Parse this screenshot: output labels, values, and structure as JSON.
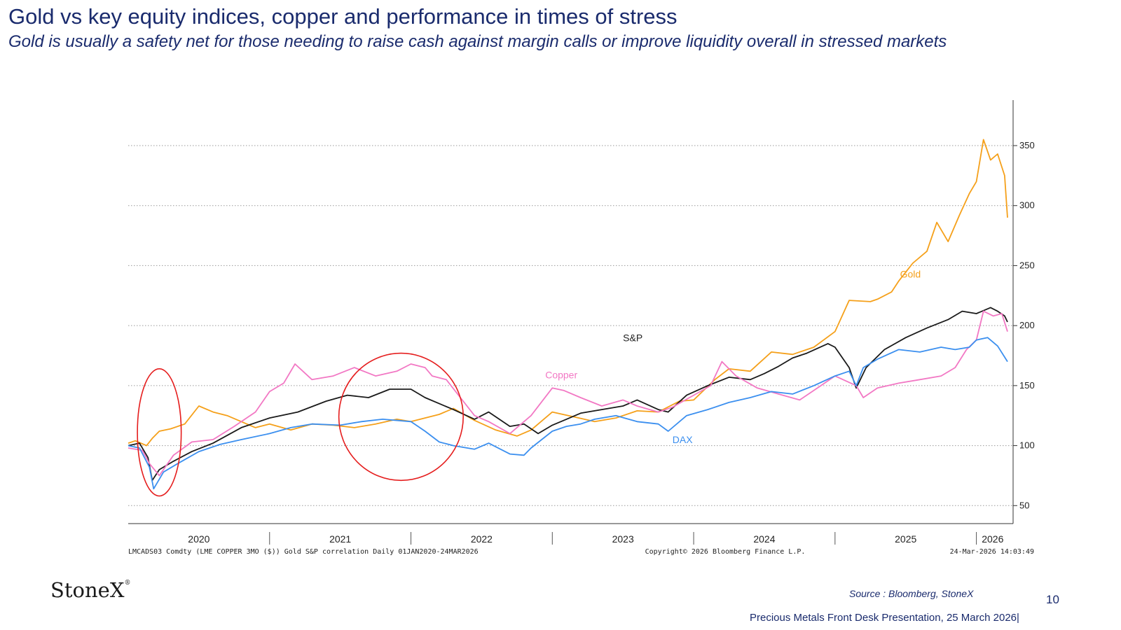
{
  "page": {
    "title": "Gold vs key equity indices, copper and performance in times of stress",
    "subtitle": "Gold is usually a safety net for those needing to raise cash against margin calls or improve liquidity overall in stressed markets",
    "brand": "StoneX",
    "brand_mark": "®",
    "source": "Source : Bloomberg, StoneX",
    "page_number": "10",
    "footer": "Precious Metals Front Desk Presentation, 25 March 2026|"
  },
  "chart_data": {
    "type": "line",
    "title": "",
    "xlabel": "",
    "ylabel": "",
    "x_axis_labels": [
      "2020",
      "2021",
      "2022",
      "2023",
      "2024",
      "2025",
      "2026"
    ],
    "y_ticks": [
      50,
      100,
      150,
      200,
      250,
      300,
      350
    ],
    "ylim": [
      35,
      385
    ],
    "xlim": [
      2020.0,
      2026.23
    ],
    "grid": true,
    "y_axis_side": "right",
    "footnote_left": "LMCADS03 Comdty (LME COPPER    3MO ($)) Gold S&P correlation Daily 01JAN2020-24MAR2026",
    "footnote_center": "Copyright© 2026 Bloomberg Finance L.P.",
    "footnote_right": "24-Mar-2026 14:03:49",
    "series": [
      {
        "name": "Gold",
        "color": "#f5a01a",
        "x": [
          2020.0,
          2020.05,
          2020.13,
          2020.17,
          2020.22,
          2020.3,
          2020.4,
          2020.5,
          2020.6,
          2020.7,
          2020.9,
          2021.0,
          2021.15,
          2021.3,
          2021.45,
          2021.6,
          2021.75,
          2021.9,
          2022.0,
          2022.1,
          2022.2,
          2022.3,
          2022.45,
          2022.6,
          2022.75,
          2022.85,
          2023.0,
          2023.15,
          2023.3,
          2023.45,
          2023.6,
          2023.75,
          2023.9,
          2024.0,
          2024.15,
          2024.25,
          2024.4,
          2024.55,
          2024.7,
          2024.85,
          2025.0,
          2025.1,
          2025.25,
          2025.3,
          2025.4,
          2025.45,
          2025.55,
          2025.65,
          2025.72,
          2025.8,
          2025.88,
          2025.95,
          2026.0,
          2026.05,
          2026.1,
          2026.15,
          2026.2,
          2026.22
        ],
        "values": [
          102,
          104,
          100,
          106,
          112,
          114,
          118,
          133,
          128,
          125,
          115,
          118,
          113,
          118,
          117,
          115,
          118,
          122,
          120,
          123,
          126,
          131,
          121,
          113,
          108,
          113,
          128,
          124,
          120,
          123,
          129,
          128,
          137,
          138,
          155,
          164,
          162,
          178,
          176,
          182,
          195,
          221,
          220,
          222,
          228,
          237,
          252,
          262,
          286,
          270,
          292,
          310,
          320,
          355,
          338,
          343,
          325,
          290
        ]
      },
      {
        "name": "S&P",
        "color": "#1a1a1a",
        "x": [
          2020.0,
          2020.08,
          2020.14,
          2020.17,
          2020.22,
          2020.32,
          2020.45,
          2020.6,
          2020.8,
          2021.0,
          2021.2,
          2021.4,
          2021.55,
          2021.7,
          2021.85,
          2022.0,
          2022.1,
          2022.2,
          2022.3,
          2022.45,
          2022.55,
          2022.7,
          2022.8,
          2022.9,
          2023.0,
          2023.1,
          2023.2,
          2023.35,
          2023.5,
          2023.6,
          2023.75,
          2023.82,
          2023.95,
          2024.1,
          2024.25,
          2024.4,
          2024.5,
          2024.6,
          2024.7,
          2024.8,
          2024.95,
          2025.0,
          2025.1,
          2025.15,
          2025.22,
          2025.35,
          2025.5,
          2025.65,
          2025.8,
          2025.9,
          2026.0,
          2026.1,
          2026.15,
          2026.2,
          2026.22
        ],
        "values": [
          100,
          102,
          90,
          71,
          80,
          87,
          95,
          102,
          115,
          123,
          128,
          137,
          142,
          140,
          147,
          147,
          140,
          135,
          130,
          122,
          128,
          116,
          118,
          110,
          117,
          122,
          127,
          130,
          133,
          138,
          130,
          128,
          142,
          150,
          157,
          155,
          160,
          166,
          173,
          177,
          185,
          182,
          165,
          148,
          165,
          180,
          190,
          198,
          205,
          212,
          210,
          215,
          212,
          208,
          203
        ]
      },
      {
        "name": "Copper",
        "color": "#f278c4",
        "x": [
          2020.0,
          2020.1,
          2020.15,
          2020.22,
          2020.32,
          2020.45,
          2020.6,
          2020.75,
          2020.9,
          2021.0,
          2021.1,
          2021.18,
          2021.3,
          2021.45,
          2021.6,
          2021.75,
          2021.9,
          2022.0,
          2022.1,
          2022.15,
          2022.25,
          2022.35,
          2022.45,
          2022.55,
          2022.7,
          2022.85,
          2023.0,
          2023.08,
          2023.2,
          2023.35,
          2023.5,
          2023.6,
          2023.75,
          2023.85,
          2024.0,
          2024.12,
          2024.2,
          2024.3,
          2024.45,
          2024.6,
          2024.75,
          2024.9,
          2025.0,
          2025.15,
          2025.2,
          2025.3,
          2025.45,
          2025.6,
          2025.75,
          2025.85,
          2025.93,
          2026.0,
          2026.05,
          2026.12,
          2026.18,
          2026.22
        ],
        "values": [
          98,
          96,
          85,
          75,
          92,
          103,
          105,
          116,
          128,
          145,
          152,
          168,
          155,
          158,
          165,
          158,
          162,
          168,
          165,
          158,
          155,
          140,
          125,
          120,
          110,
          125,
          148,
          146,
          140,
          133,
          138,
          133,
          128,
          132,
          142,
          150,
          170,
          158,
          148,
          143,
          138,
          150,
          158,
          150,
          140,
          148,
          152,
          155,
          158,
          165,
          180,
          188,
          212,
          208,
          210,
          195
        ]
      },
      {
        "name": "DAX",
        "color": "#3b8fef",
        "x": [
          2020.0,
          2020.08,
          2020.15,
          2020.18,
          2020.25,
          2020.35,
          2020.5,
          2020.65,
          2020.8,
          2021.0,
          2021.15,
          2021.3,
          2021.5,
          2021.65,
          2021.8,
          2022.0,
          2022.1,
          2022.2,
          2022.3,
          2022.45,
          2022.55,
          2022.7,
          2022.8,
          2022.85,
          2023.0,
          2023.1,
          2023.2,
          2023.3,
          2023.45,
          2023.6,
          2023.75,
          2023.82,
          2023.95,
          2024.1,
          2024.25,
          2024.4,
          2024.55,
          2024.7,
          2024.85,
          2025.0,
          2025.1,
          2025.15,
          2025.2,
          2025.3,
          2025.45,
          2025.6,
          2025.75,
          2025.85,
          2025.95,
          2026.0,
          2026.08,
          2026.15,
          2026.22
        ],
        "values": [
          100,
          98,
          82,
          64,
          78,
          85,
          95,
          101,
          105,
          110,
          115,
          118,
          117,
          120,
          122,
          120,
          112,
          103,
          100,
          97,
          102,
          93,
          92,
          98,
          112,
          116,
          118,
          122,
          125,
          120,
          118,
          112,
          125,
          130,
          136,
          140,
          145,
          143,
          150,
          158,
          162,
          150,
          165,
          172,
          180,
          178,
          182,
          180,
          182,
          188,
          190,
          183,
          170
        ]
      }
    ],
    "annotations": [
      {
        "label": "Gold",
        "x": 2025.46,
        "y": 240
      },
      {
        "label": "S&P",
        "x": 2023.5,
        "y": 187
      },
      {
        "label": "Copper",
        "x": 2022.95,
        "y": 156
      },
      {
        "label": "DAX",
        "x": 2023.85,
        "y": 102
      }
    ],
    "highlights": [
      {
        "shape": "ellipse",
        "x_center": 2020.22,
        "y_center": 111,
        "x_radius": 0.155,
        "y_radius": 53
      },
      {
        "shape": "circle",
        "x_center": 2021.93,
        "y_center": 124,
        "x_radius": 0.44,
        "y_radius": 53
      }
    ]
  }
}
